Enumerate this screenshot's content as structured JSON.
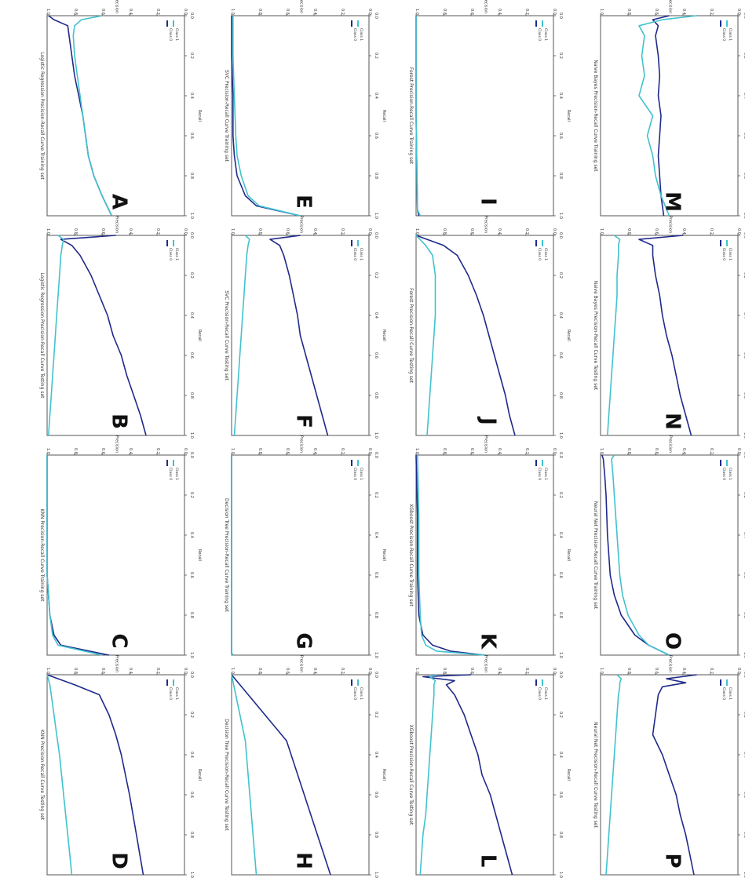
{
  "chart_data": [
    {
      "type": "line",
      "label": "A",
      "title": "Logistic Regression Precision-Recall Curve Training set",
      "xlabel": "Recall",
      "ylabel": "Precision",
      "xlim": [
        0,
        1
      ],
      "ylim": [
        0,
        1
      ],
      "x": [
        0,
        0.02,
        0.05,
        0.1,
        0.2,
        0.3,
        0.4,
        0.5,
        0.6,
        0.7,
        0.8,
        0.9,
        1.0
      ],
      "series": [
        {
          "name": "Class 0",
          "color": "#1f2a8a",
          "values": [
            0.99,
            0.95,
            0.85,
            0.84,
            0.82,
            0.8,
            0.77,
            0.74,
            0.72,
            0.7,
            0.66,
            0.6,
            0.53
          ]
        },
        {
          "name": "Class 1",
          "color": "#41c2cf",
          "values": [
            0.6,
            0.75,
            0.8,
            0.81,
            0.8,
            0.78,
            0.76,
            0.74,
            0.72,
            0.7,
            0.66,
            0.6,
            0.53
          ]
        }
      ]
    },
    {
      "type": "line",
      "label": "B",
      "title": "Logistic Regression Precision-Recall Curve Testing set",
      "xlabel": "Recall",
      "ylabel": "Precision",
      "xlim": [
        0,
        1
      ],
      "ylim": [
        0,
        1
      ],
      "x": [
        0,
        0.02,
        0.05,
        0.1,
        0.2,
        0.3,
        0.4,
        0.5,
        0.6,
        0.7,
        0.8,
        0.9,
        1.0
      ],
      "series": [
        {
          "name": "Class 0",
          "color": "#1f2a8a",
          "values": [
            0.5,
            0.9,
            0.82,
            0.76,
            0.68,
            0.62,
            0.56,
            0.52,
            0.46,
            0.42,
            0.37,
            0.32,
            0.28
          ]
        },
        {
          "name": "Class 1",
          "color": "#41c2cf",
          "values": [
            0.92,
            0.88,
            0.89,
            0.9,
            0.91,
            0.92,
            0.93,
            0.94,
            0.95,
            0.96,
            0.97,
            0.98,
            0.99
          ]
        }
      ]
    },
    {
      "type": "line",
      "label": "C",
      "title": "KNN Precision-Recall Curve Training set",
      "xlabel": "Recall",
      "ylabel": "Precision",
      "xlim": [
        0,
        1
      ],
      "ylim": [
        0,
        1
      ],
      "x": [
        0,
        0.2,
        0.4,
        0.6,
        0.7,
        0.8,
        0.9,
        0.95,
        1.0
      ],
      "series": [
        {
          "name": "Class 0",
          "color": "#1f2a8a",
          "values": [
            1.0,
            1.0,
            1.0,
            1.0,
            0.99,
            0.98,
            0.95,
            0.9,
            0.55
          ]
        },
        {
          "name": "Class 1",
          "color": "#41c2cf",
          "values": [
            1.0,
            1.0,
            1.0,
            1.0,
            0.99,
            0.98,
            0.96,
            0.92,
            0.6
          ]
        }
      ]
    },
    {
      "type": "line",
      "label": "D",
      "title": "KNN Precision-Recall Curve Testing set",
      "xlabel": "Recall",
      "ylabel": "Precision",
      "xlim": [
        0,
        1
      ],
      "ylim": [
        0,
        1
      ],
      "x": [
        0,
        0.05,
        0.1,
        0.2,
        0.3,
        0.4,
        0.6,
        0.8,
        1.0
      ],
      "series": [
        {
          "name": "Class 0",
          "color": "#1f2a8a",
          "values": [
            1.0,
            0.8,
            0.62,
            0.55,
            0.5,
            0.46,
            0.4,
            0.35,
            0.3
          ]
        },
        {
          "name": "Class 1",
          "color": "#41c2cf",
          "values": [
            1.0,
            0.98,
            0.97,
            0.95,
            0.93,
            0.91,
            0.88,
            0.85,
            0.82
          ]
        }
      ]
    },
    {
      "type": "line",
      "label": "E",
      "title": "SVC Precision-Recall Curve Training set",
      "xlabel": "Recall",
      "ylabel": "Precision",
      "xlim": [
        0,
        1
      ],
      "ylim": [
        0,
        1
      ],
      "x": [
        0,
        0.2,
        0.4,
        0.6,
        0.7,
        0.8,
        0.9,
        0.95,
        1.0
      ],
      "series": [
        {
          "name": "Class 0",
          "color": "#1f2a8a",
          "values": [
            1.0,
            1.0,
            0.99,
            0.99,
            0.98,
            0.96,
            0.9,
            0.82,
            0.5
          ]
        },
        {
          "name": "Class 1",
          "color": "#41c2cf",
          "values": [
            0.99,
            0.99,
            0.98,
            0.97,
            0.96,
            0.93,
            0.88,
            0.8,
            0.5
          ]
        }
      ]
    },
    {
      "type": "line",
      "label": "F",
      "title": "SVC Precision-Recall Curve Testing set",
      "xlabel": "Recall",
      "ylabel": "Precision",
      "xlim": [
        0,
        1
      ],
      "ylim": [
        0,
        1
      ],
      "x": [
        0,
        0.02,
        0.05,
        0.1,
        0.2,
        0.3,
        0.4,
        0.5,
        0.6,
        0.7,
        0.8,
        0.9,
        1.0
      ],
      "series": [
        {
          "name": "Class 0",
          "color": "#1f2a8a",
          "values": [
            0.5,
            0.72,
            0.65,
            0.62,
            0.58,
            0.55,
            0.52,
            0.5,
            0.46,
            0.42,
            0.38,
            0.34,
            0.3
          ]
        },
        {
          "name": "Class 1",
          "color": "#41c2cf",
          "values": [
            0.9,
            0.87,
            0.88,
            0.89,
            0.9,
            0.91,
            0.92,
            0.93,
            0.94,
            0.95,
            0.96,
            0.97,
            0.98
          ]
        }
      ]
    },
    {
      "type": "line",
      "label": "G",
      "title": "Decision Tree Precision-Recall Curve Training set",
      "xlabel": "Recall",
      "ylabel": "Precision",
      "xlim": [
        0,
        1
      ],
      "ylim": [
        0,
        1
      ],
      "x": [
        0,
        0.5,
        0.99,
        1.0
      ],
      "series": [
        {
          "name": "Class 0",
          "color": "#1f2a8a",
          "values": [
            1.0,
            1.0,
            1.0,
            0.99
          ]
        },
        {
          "name": "Class 1",
          "color": "#41c2cf",
          "values": [
            1.0,
            1.0,
            1.0,
            0.99
          ]
        }
      ]
    },
    {
      "type": "line",
      "label": "H",
      "title": "Decision Tree Precision-Recall Curve Testing set",
      "xlabel": "Recall",
      "ylabel": "Precision",
      "xlim": [
        0,
        1
      ],
      "ylim": [
        0,
        1
      ],
      "x": [
        0,
        0.33,
        1.0
      ],
      "series": [
        {
          "name": "Class 0",
          "color": "#1f2a8a",
          "values": [
            1.0,
            0.6,
            0.28
          ]
        },
        {
          "name": "Class 1",
          "color": "#41c2cf",
          "values": [
            1.0,
            0.9,
            0.82
          ]
        }
      ]
    },
    {
      "type": "line",
      "label": "I",
      "title": "Forest Precision-Recall Curve Training set",
      "xlabel": "Recall",
      "ylabel": "Precision",
      "xlim": [
        0,
        1
      ],
      "ylim": [
        0,
        1
      ],
      "x": [
        0,
        0.5,
        0.97,
        1.0
      ],
      "series": [
        {
          "name": "Class 0",
          "color": "#1f2a8a",
          "values": [
            1.0,
            1.0,
            0.99,
            0.98
          ]
        },
        {
          "name": "Class 1",
          "color": "#41c2cf",
          "values": [
            1.0,
            1.0,
            0.99,
            0.97
          ]
        }
      ]
    },
    {
      "type": "line",
      "label": "J",
      "title": "Forest Precision-Recall Curve Testing set",
      "xlabel": "Recall",
      "ylabel": "Precision",
      "xlim": [
        0,
        1
      ],
      "ylim": [
        0,
        1
      ],
      "x": [
        0,
        0.05,
        0.1,
        0.2,
        0.3,
        0.4,
        0.5,
        0.6,
        0.7,
        0.8,
        0.9,
        1.0
      ],
      "series": [
        {
          "name": "Class 0",
          "color": "#1f2a8a",
          "values": [
            1.0,
            0.8,
            0.7,
            0.62,
            0.56,
            0.51,
            0.47,
            0.43,
            0.39,
            0.35,
            0.32,
            0.28
          ]
        },
        {
          "name": "Class 1",
          "color": "#41c2cf",
          "values": [
            1.0,
            0.93,
            0.88,
            0.86,
            0.86,
            0.86,
            0.87,
            0.88,
            0.89,
            0.9,
            0.91,
            0.92
          ]
        }
      ]
    },
    {
      "type": "line",
      "label": "K",
      "title": "XGboost Precision-Recall Curve Training set",
      "xlabel": "Recall",
      "ylabel": "Precision",
      "xlim": [
        0,
        1
      ],
      "ylim": [
        0,
        1
      ],
      "x": [
        0,
        0.3,
        0.6,
        0.8,
        0.9,
        0.95,
        0.98,
        1.0
      ],
      "series": [
        {
          "name": "Class 0",
          "color": "#1f2a8a",
          "values": [
            1.0,
            0.99,
            0.99,
            0.98,
            0.95,
            0.88,
            0.75,
            0.5
          ]
        },
        {
          "name": "Class 1",
          "color": "#41c2cf",
          "values": [
            0.99,
            0.98,
            0.98,
            0.97,
            0.96,
            0.93,
            0.85,
            0.5
          ]
        }
      ]
    },
    {
      "type": "line",
      "label": "L",
      "title": "XGboost Precision-Recall Curve Testing set",
      "xlabel": "Recall",
      "ylabel": "Precision",
      "xlim": [
        0,
        1
      ],
      "ylim": [
        0,
        1
      ],
      "x": [
        0,
        0.01,
        0.03,
        0.05,
        0.1,
        0.2,
        0.3,
        0.4,
        0.5,
        0.6,
        0.7,
        0.8,
        0.9,
        1.0
      ],
      "series": [
        {
          "name": "Class 0",
          "color": "#1f2a8a",
          "values": [
            0.6,
            0.95,
            0.72,
            0.78,
            0.72,
            0.65,
            0.6,
            0.55,
            0.52,
            0.46,
            0.42,
            0.38,
            0.34,
            0.3
          ]
        },
        {
          "name": "Class 1",
          "color": "#41c2cf",
          "values": [
            0.85,
            0.9,
            0.86,
            0.87,
            0.87,
            0.88,
            0.89,
            0.9,
            0.91,
            0.92,
            0.93,
            0.95,
            0.96,
            0.97
          ]
        }
      ]
    },
    {
      "type": "line",
      "label": "M",
      "title": "Naive Bayes Precision-Recall Curve Training set",
      "xlabel": "Recall",
      "ylabel": "Precision",
      "xlim": [
        0,
        1
      ],
      "ylim": [
        0,
        1
      ],
      "x": [
        0,
        0.02,
        0.05,
        0.1,
        0.2,
        0.3,
        0.4,
        0.5,
        0.6,
        0.7,
        0.8,
        0.9,
        1.0
      ],
      "series": [
        {
          "name": "Class 0",
          "color": "#1f2a8a",
          "values": [
            0.5,
            0.62,
            0.58,
            0.6,
            0.58,
            0.57,
            0.58,
            0.56,
            0.57,
            0.58,
            0.57,
            0.56,
            0.54
          ]
        },
        {
          "name": "Class 1",
          "color": "#41c2cf",
          "values": [
            0.3,
            0.55,
            0.72,
            0.68,
            0.7,
            0.68,
            0.72,
            0.62,
            0.66,
            0.62,
            0.6,
            0.56,
            0.5
          ]
        }
      ]
    },
    {
      "type": "line",
      "label": "N",
      "title": "Naive Bayes Precision-Recall Curve Testing set",
      "xlabel": "Recall",
      "ylabel": "Precision",
      "xlim": [
        0,
        1
      ],
      "ylim": [
        0,
        1
      ],
      "x": [
        0,
        0.02,
        0.05,
        0.1,
        0.2,
        0.3,
        0.4,
        0.5,
        0.6,
        0.7,
        0.8,
        0.9,
        1.0
      ],
      "series": [
        {
          "name": "Class 0",
          "color": "#1f2a8a",
          "values": [
            0.4,
            0.72,
            0.62,
            0.62,
            0.6,
            0.57,
            0.55,
            0.52,
            0.48,
            0.45,
            0.42,
            0.38,
            0.34
          ]
        },
        {
          "name": "Class 1",
          "color": "#41c2cf",
          "values": [
            0.9,
            0.86,
            0.87,
            0.87,
            0.88,
            0.88,
            0.89,
            0.9,
            0.91,
            0.92,
            0.93,
            0.94,
            0.95
          ]
        }
      ]
    },
    {
      "type": "line",
      "label": "O",
      "title": "Neural Net Precision-Recall Curve Training set",
      "xlabel": "Recall",
      "ylabel": "Precision",
      "xlim": [
        0,
        1
      ],
      "ylim": [
        0,
        1
      ],
      "x": [
        0,
        0.02,
        0.1,
        0.2,
        0.4,
        0.6,
        0.7,
        0.8,
        0.9,
        0.95,
        1.0
      ],
      "series": [
        {
          "name": "Class 0",
          "color": "#1f2a8a",
          "values": [
            0.99,
            0.98,
            0.97,
            0.96,
            0.95,
            0.93,
            0.9,
            0.85,
            0.75,
            0.65,
            0.5
          ]
        },
        {
          "name": "Class 1",
          "color": "#41c2cf",
          "values": [
            0.9,
            0.92,
            0.91,
            0.9,
            0.88,
            0.86,
            0.84,
            0.8,
            0.72,
            0.65,
            0.5
          ]
        }
      ]
    },
    {
      "type": "line",
      "label": "P",
      "title": "Neural Net Precision-Recall Curve Testing set",
      "xlabel": "Recall",
      "ylabel": "Precision",
      "xlim": [
        0,
        1
      ],
      "ylim": [
        0,
        1
      ],
      "x": [
        0,
        0.02,
        0.04,
        0.06,
        0.1,
        0.2,
        0.3,
        0.4,
        0.5,
        0.6,
        0.7,
        0.8,
        0.9,
        1.0
      ],
      "series": [
        {
          "name": "Class 0",
          "color": "#1f2a8a",
          "values": [
            0.3,
            0.52,
            0.38,
            0.55,
            0.58,
            0.6,
            0.62,
            0.55,
            0.5,
            0.45,
            0.42,
            0.38,
            0.35,
            0.32
          ]
        },
        {
          "name": "Class 1",
          "color": "#41c2cf",
          "values": [
            0.88,
            0.85,
            0.86,
            0.86,
            0.87,
            0.88,
            0.89,
            0.9,
            0.91,
            0.92,
            0.93,
            0.94,
            0.95,
            0.96
          ]
        }
      ]
    }
  ]
}
